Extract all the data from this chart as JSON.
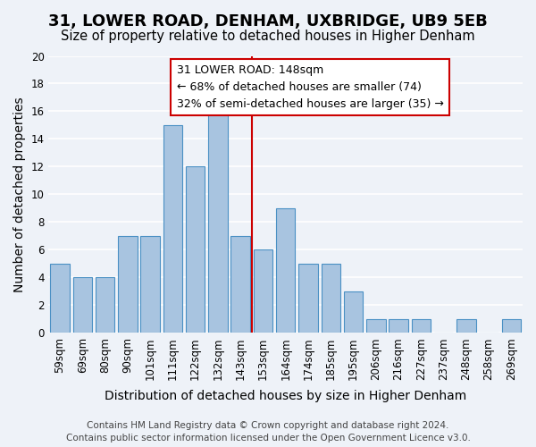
{
  "title": "31, LOWER ROAD, DENHAM, UXBRIDGE, UB9 5EB",
  "subtitle": "Size of property relative to detached houses in Higher Denham",
  "xlabel": "Distribution of detached houses by size in Higher Denham",
  "ylabel": "Number of detached properties",
  "footer_lines": [
    "Contains HM Land Registry data © Crown copyright and database right 2024.",
    "Contains public sector information licensed under the Open Government Licence v3.0."
  ],
  "bins": [
    "59sqm",
    "69sqm",
    "80sqm",
    "90sqm",
    "101sqm",
    "111sqm",
    "122sqm",
    "132sqm",
    "143sqm",
    "153sqm",
    "164sqm",
    "174sqm",
    "185sqm",
    "195sqm",
    "206sqm",
    "216sqm",
    "227sqm",
    "237sqm",
    "248sqm",
    "258sqm",
    "269sqm"
  ],
  "counts": [
    5,
    4,
    4,
    7,
    7,
    15,
    12,
    16,
    7,
    6,
    9,
    5,
    5,
    3,
    1,
    1,
    1,
    0,
    1,
    0,
    1
  ],
  "bar_color": "#a8c4e0",
  "bar_edge_color": "#4a90c4",
  "highlight_bin_index": 8,
  "highlight_line_color": "#cc0000",
  "annotation_box_color": "#ffffff",
  "annotation_box_edge_color": "#cc0000",
  "annotation_title": "31 LOWER ROAD: 148sqm",
  "annotation_line1": "← 68% of detached houses are smaller (74)",
  "annotation_line2": "32% of semi-detached houses are larger (35) →",
  "ylim": [
    0,
    20
  ],
  "yticks": [
    0,
    2,
    4,
    6,
    8,
    10,
    12,
    14,
    16,
    18,
    20
  ],
  "background_color": "#eef2f8",
  "grid_color": "#ffffff",
  "title_fontsize": 13,
  "subtitle_fontsize": 10.5,
  "axis_label_fontsize": 10,
  "tick_fontsize": 8.5,
  "annotation_fontsize": 9,
  "footer_fontsize": 7.5
}
